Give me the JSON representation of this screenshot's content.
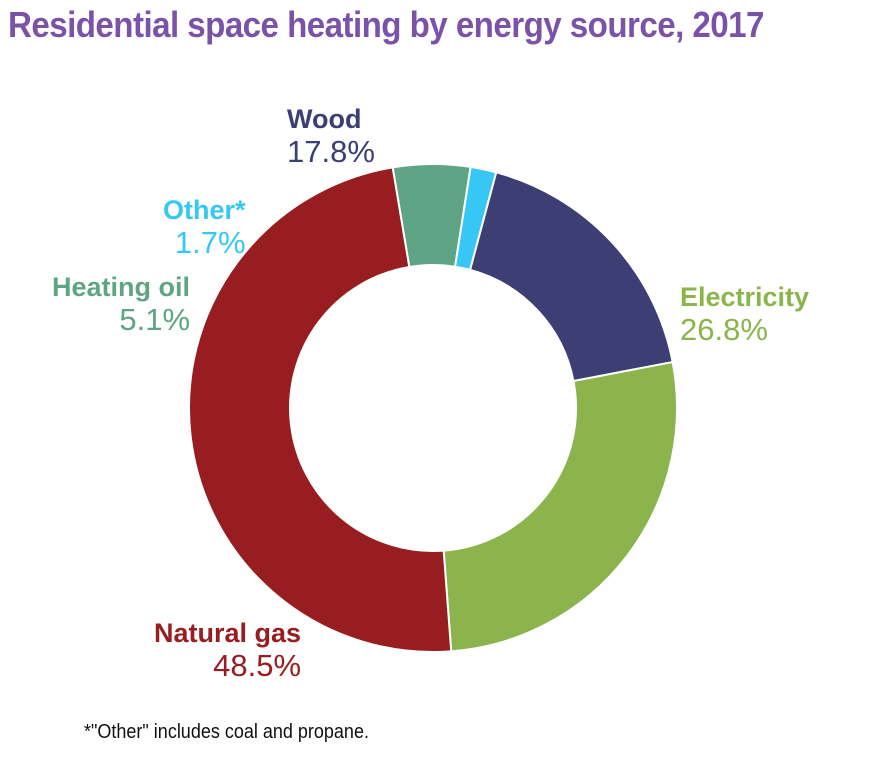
{
  "chart_data": {
    "type": "pie",
    "donut": true,
    "title": "Residential space heating by energy source, 2017",
    "start_category": "Wood",
    "categories": [
      "Wood",
      "Electricity",
      "Natural gas",
      "Heating oil",
      "Other*"
    ],
    "values": [
      17.8,
      26.8,
      48.5,
      5.1,
      1.7
    ],
    "value_labels": [
      "17.8%",
      "26.8%",
      "48.5%",
      "5.1%",
      "1.7%"
    ],
    "colors": [
      "#3c3e74",
      "#8bb44d",
      "#981d20",
      "#5fa485",
      "#37c7f4"
    ],
    "footnote": "*\"Other\" includes coal and propane."
  }
}
